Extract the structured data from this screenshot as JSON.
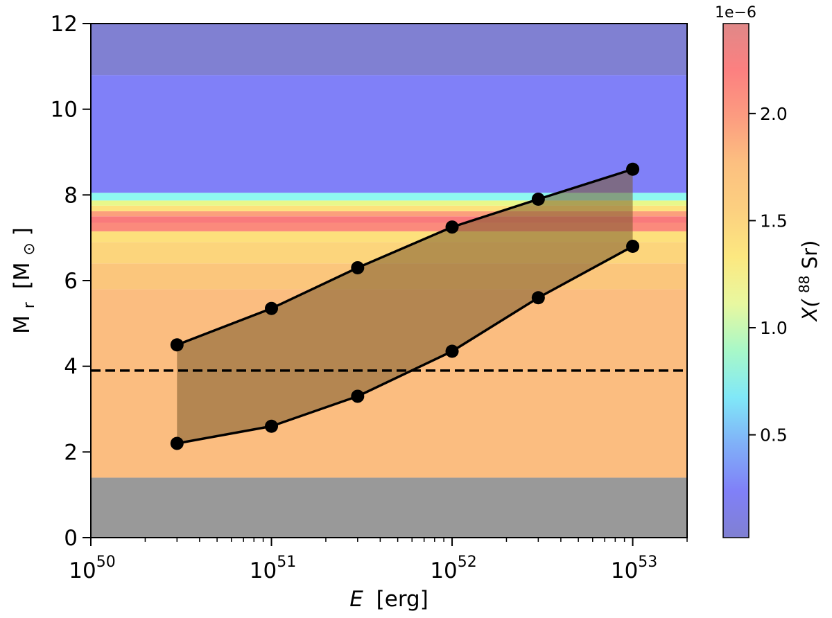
{
  "chart_data": {
    "type": "line",
    "xlabel_symbol": "E",
    "xlabel_unit": "[erg]",
    "ylabel_main": "M",
    "ylabel_sub": "r",
    "ylabel_unit_open": "[M",
    "ylabel_unit_sym": "⊙",
    "ylabel_unit_close": "]",
    "x_scale": "log",
    "xlim": [
      1e+50,
      2e+53
    ],
    "ylim": [
      0,
      12
    ],
    "x_ticks": [
      {
        "base": "10",
        "exp": "50",
        "value": 1e+50
      },
      {
        "base": "10",
        "exp": "51",
        "value": 1e+51
      },
      {
        "base": "10",
        "exp": "52",
        "value": 1e+52
      },
      {
        "base": "10",
        "exp": "53",
        "value": 1e+53
      }
    ],
    "y_ticks": [
      "0",
      "2",
      "4",
      "6",
      "8",
      "10",
      "12"
    ],
    "x": [
      3e+50,
      1e+51,
      3e+51,
      1e+52,
      3e+52,
      1e+53
    ],
    "series": [
      {
        "values": [
          4.5,
          5.35,
          6.3,
          7.25,
          7.9,
          8.6
        ]
      },
      {
        "values": [
          2.2,
          2.6,
          3.3,
          4.35,
          5.6,
          6.8
        ]
      }
    ],
    "dashed_line_y": 3.9,
    "fill_color": "#7a5a2a",
    "background_bands": [
      {
        "from": 0,
        "to": 1.4,
        "color": "#999999"
      },
      {
        "from": 1.4,
        "to": 5.8,
        "color": "#fbbd80"
      },
      {
        "from": 5.8,
        "to": 6.4,
        "color": "#fbc67c"
      },
      {
        "from": 6.4,
        "to": 6.9,
        "color": "#fcd57c"
      },
      {
        "from": 6.9,
        "to": 7.15,
        "color": "#fde07c"
      },
      {
        "from": 7.15,
        "to": 7.35,
        "color": "#fb8a7c"
      },
      {
        "from": 7.35,
        "to": 7.5,
        "color": "#f97a7c"
      },
      {
        "from": 7.5,
        "to": 7.62,
        "color": "#fb9f7c"
      },
      {
        "from": 7.62,
        "to": 7.75,
        "color": "#fde27c"
      },
      {
        "from": 7.75,
        "to": 7.87,
        "color": "#e8f88a"
      },
      {
        "from": 7.87,
        "to": 8.05,
        "color": "#8ef8f0"
      },
      {
        "from": 8.05,
        "to": 10.8,
        "color": "#8080f8"
      },
      {
        "from": 10.8,
        "to": 12,
        "color": "#8080d2"
      }
    ],
    "colorbar": {
      "label_prefix": "X(",
      "label_sup": "88",
      "label_suffix": "Sr)",
      "offset_text": "1e−6",
      "min": 0.02,
      "max": 2.42,
      "ticks": [
        "0.5",
        "1.0",
        "1.5",
        "2.0"
      ],
      "tick_values": [
        0.5,
        1.0,
        1.5,
        2.0
      ],
      "colors": [
        "#8080d2",
        "#8080f8",
        "#80b0f8",
        "#80e8f8",
        "#a8f8c8",
        "#e8f8a0",
        "#fce880",
        "#fcd080",
        "#fcc080",
        "#fc9c80",
        "#fc8080",
        "#e08888"
      ]
    }
  }
}
